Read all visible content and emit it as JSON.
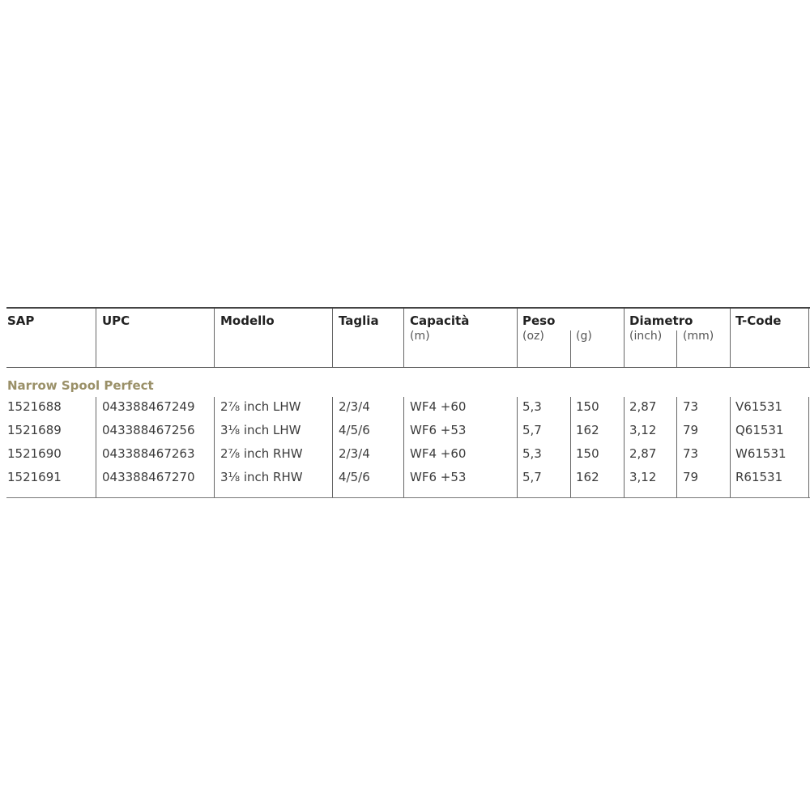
{
  "table": {
    "headers": [
      {
        "label": "SAP",
        "sub": []
      },
      {
        "label": "UPC",
        "sub": []
      },
      {
        "label": "Modello",
        "sub": []
      },
      {
        "label": "Taglia",
        "sub": []
      },
      {
        "label": "Capacità",
        "sub": [
          "(m)"
        ]
      },
      {
        "label": "Peso",
        "sub": [
          "(oz)",
          "(g)"
        ]
      },
      {
        "label": "Diametro",
        "sub": [
          "(inch)",
          "(mm)"
        ]
      },
      {
        "label": "T-Code",
        "sub": []
      }
    ],
    "group_title": "Narrow Spool Perfect",
    "group_color": "#9a9068",
    "rows": [
      [
        "1521688",
        "043388467249",
        "2⅞ inch LHW",
        "2/3/4",
        "WF4 +60",
        "5,3",
        "150",
        "2,87",
        "73",
        "V61531"
      ],
      [
        "1521689",
        "043388467256",
        "3⅛ inch LHW",
        "4/5/6",
        "WF6 +53",
        "5,7",
        "162",
        "3,12",
        "79",
        "Q61531"
      ],
      [
        "1521690",
        "043388467263",
        "2⅞ inch RHW",
        "2/3/4",
        "WF4 +60",
        "5,3",
        "150",
        "2,87",
        "73",
        "W61531"
      ],
      [
        "1521691",
        "043388467270",
        "3⅛ inch RHW",
        "4/5/6",
        "WF6 +53",
        "5,7",
        "162",
        "3,12",
        "79",
        "R61531"
      ]
    ]
  }
}
